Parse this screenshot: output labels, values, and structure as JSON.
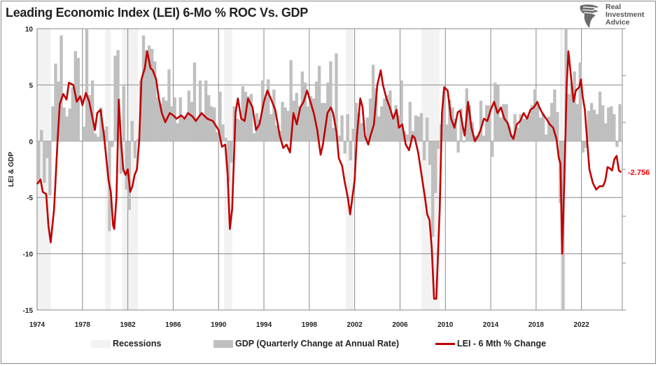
{
  "title": "Leading Economic Index (LEI) 6-Mo % ROC Vs. GDP",
  "logo": {
    "lines": [
      "Real",
      "Investment",
      "Advice"
    ],
    "icon": "eagle-head-icon"
  },
  "chart_data": {
    "type": "bar+line",
    "title": "Leading Economic Index (LEI) 6-Mo % ROC Vs. GDP",
    "ylabel": "LEI & GDP",
    "xlabel": "",
    "ylim": [
      -15,
      10
    ],
    "yticks": [
      10,
      5,
      0,
      -5,
      -10,
      -15
    ],
    "xlim": [
      1974,
      2025.6
    ],
    "xticks": [
      1974,
      1978,
      1982,
      1986,
      1990,
      1994,
      1998,
      2002,
      2006,
      2010,
      2014,
      2018,
      2022
    ],
    "grid": true,
    "legend_position": "bottom",
    "colors": {
      "recession": "#f2f2f2",
      "gdp": "#bfbfbf",
      "lei": "#c00000",
      "last_label": "#ff0000"
    },
    "last_value_label": "-2.756",
    "legend": [
      "Recessions",
      "GDP (Quarterly Change at Annual Rate)",
      "LEI - 6 Mth % Change"
    ],
    "recessions": [
      [
        1973.9,
        1975.2
      ],
      [
        1980.0,
        1980.5
      ],
      [
        1981.5,
        1982.9
      ],
      [
        1990.5,
        1991.2
      ],
      [
        2001.2,
        2001.9
      ],
      [
        2007.9,
        2009.5
      ],
      [
        2020.1,
        2020.4
      ]
    ],
    "gdp": {
      "name": "GDP (Quarterly Change at Annual Rate)",
      "start_year": 1974,
      "values": [
        -3.4,
        1.0,
        -3.7,
        -1.5,
        -4.8,
        3.1,
        6.9,
        5.3,
        9.4,
        3.0,
        2.2,
        2.9,
        4.8,
        8.0,
        7.4,
        0.0,
        1.3,
        16.4,
        4.1,
        5.4,
        0.7,
        0.4,
        3.0,
        1.0,
        1.3,
        -8.0,
        -0.5,
        7.6,
        8.1,
        -2.9,
        4.9,
        -4.3,
        -6.1,
        1.8,
        -1.5,
        0.2,
        5.4,
        9.4,
        8.1,
        8.5,
        8.2,
        7.1,
        3.9,
        3.3,
        3.9,
        3.6,
        6.4,
        3.1,
        3.9,
        1.6,
        3.9,
        2.0,
        2.2,
        4.5,
        3.5,
        7.0,
        2.1,
        5.4,
        2.4,
        5.4,
        4.1,
        3.1,
        3.0,
        0.8,
        4.4,
        1.5,
        0.3,
        -3.6,
        -1.9,
        3.1,
        2.0,
        1.9,
        4.9,
        4.4,
        4.0,
        4.2,
        0.7,
        2.5,
        1.9,
        5.4,
        3.9,
        5.5,
        2.4,
        4.6,
        1.4,
        0.9,
        3.5,
        3.0,
        2.7,
        7.2,
        3.6,
        4.3,
        3.1,
        6.2,
        5.2,
        3.1,
        4.0,
        3.8,
        5.3,
        6.7,
        3.4,
        3.4,
        5.2,
        7.1,
        1.2,
        7.8,
        0.5,
        2.3,
        -1.1,
        2.4,
        -1.7,
        1.1,
        3.4,
        2.5,
        1.6,
        0.5,
        2.1,
        3.8,
        6.8,
        4.7,
        2.2,
        3.1,
        3.8,
        4.1,
        4.5,
        2.0,
        3.2,
        2.3,
        5.4,
        0.9,
        0.6,
        3.5,
        0.9,
        2.3,
        2.2,
        2.5,
        -1.7,
        2.1,
        -2.1,
        -8.5,
        -4.6,
        -0.7,
        1.5,
        4.5,
        1.5,
        3.7,
        3.0,
        2.0,
        -1.0,
        2.9,
        -0.1,
        4.7,
        3.2,
        1.7,
        0.5,
        0.5,
        3.6,
        0.5,
        3.2,
        3.2,
        -1.4,
        5.2,
        5.0,
        2.1,
        3.3,
        3.3,
        1.3,
        0.6,
        2.4,
        1.2,
        2.4,
        2.0,
        2.0,
        2.3,
        3.2,
        4.6,
        3.3,
        2.1,
        2.5,
        0.6,
        2.2,
        3.4,
        4.6,
        2.6,
        -5.5,
        -28.0,
        35.0,
        4.2,
        5.2,
        6.2,
        3.3,
        7.0,
        -1.0,
        -0.6,
        2.7,
        3.4,
        2.8,
        2.4,
        4.4,
        3.2,
        1.6,
        3.0,
        3.1,
        2.4,
        -0.5,
        3.3
      ]
    },
    "lei": {
      "name": "LEI - 6 Mth % Change",
      "points": [
        [
          1974.0,
          -3.8
        ],
        [
          1974.3,
          -3.4
        ],
        [
          1974.5,
          -4.5
        ],
        [
          1974.8,
          -4.7
        ],
        [
          1975.0,
          -7.5
        ],
        [
          1975.2,
          -9.0
        ],
        [
          1975.5,
          -6.0
        ],
        [
          1975.8,
          0.0
        ],
        [
          1976.0,
          3.3
        ],
        [
          1976.3,
          4.2
        ],
        [
          1976.6,
          3.7
        ],
        [
          1976.8,
          5.2
        ],
        [
          1977.2,
          5.0
        ],
        [
          1977.5,
          3.5
        ],
        [
          1977.8,
          4.0
        ],
        [
          1978.0,
          3.2
        ],
        [
          1978.3,
          4.3
        ],
        [
          1978.6,
          3.5
        ],
        [
          1978.9,
          2.0
        ],
        [
          1979.1,
          1.0
        ],
        [
          1979.3,
          2.5
        ],
        [
          1979.6,
          2.8
        ],
        [
          1979.9,
          0.5
        ],
        [
          1980.1,
          -1.5
        ],
        [
          1980.3,
          -3.5
        ],
        [
          1980.5,
          -4.5
        ],
        [
          1980.7,
          -7.5
        ],
        [
          1980.8,
          -7.8
        ],
        [
          1981.0,
          -5.0
        ],
        [
          1981.2,
          3.7
        ],
        [
          1981.4,
          0.0
        ],
        [
          1981.6,
          -2.5
        ],
        [
          1981.8,
          -3.0
        ],
        [
          1982.0,
          -2.5
        ],
        [
          1982.2,
          -4.5
        ],
        [
          1982.4,
          -4.0
        ],
        [
          1982.6,
          -3.0
        ],
        [
          1982.8,
          -2.5
        ],
        [
          1983.0,
          0.0
        ],
        [
          1983.2,
          5.5
        ],
        [
          1983.5,
          6.5
        ],
        [
          1983.7,
          8.0
        ],
        [
          1984.0,
          6.5
        ],
        [
          1984.2,
          6.3
        ],
        [
          1984.5,
          5.5
        ],
        [
          1984.7,
          4.0
        ],
        [
          1985.0,
          2.5
        ],
        [
          1985.3,
          1.7
        ],
        [
          1985.7,
          2.5
        ],
        [
          1986.0,
          2.3
        ],
        [
          1986.3,
          2.0
        ],
        [
          1986.7,
          2.3
        ],
        [
          1987.0,
          2.0
        ],
        [
          1987.3,
          2.5
        ],
        [
          1987.7,
          2.2
        ],
        [
          1988.0,
          1.8
        ],
        [
          1988.5,
          2.5
        ],
        [
          1989.0,
          2.0
        ],
        [
          1989.5,
          1.8
        ],
        [
          1990.0,
          1.0
        ],
        [
          1990.3,
          -0.5
        ],
        [
          1990.6,
          -0.3
        ],
        [
          1990.8,
          -3.0
        ],
        [
          1991.0,
          -7.8
        ],
        [
          1991.2,
          -6.0
        ],
        [
          1991.5,
          2.5
        ],
        [
          1991.7,
          3.8
        ],
        [
          1992.0,
          2.0
        ],
        [
          1992.3,
          1.8
        ],
        [
          1992.6,
          3.8
        ],
        [
          1993.0,
          3.0
        ],
        [
          1993.3,
          1.0
        ],
        [
          1993.6,
          1.5
        ],
        [
          1994.0,
          3.5
        ],
        [
          1994.3,
          4.5
        ],
        [
          1994.6,
          3.8
        ],
        [
          1995.0,
          2.8
        ],
        [
          1995.4,
          0.5
        ],
        [
          1995.7,
          -0.6
        ],
        [
          1996.0,
          -0.3
        ],
        [
          1996.3,
          -1.0
        ],
        [
          1996.6,
          2.5
        ],
        [
          1996.9,
          1.5
        ],
        [
          1997.2,
          3.0
        ],
        [
          1997.5,
          3.5
        ],
        [
          1997.8,
          4.5
        ],
        [
          1998.1,
          3.5
        ],
        [
          1998.4,
          2.5
        ],
        [
          1998.7,
          1.0
        ],
        [
          1999.0,
          -1.2
        ],
        [
          1999.2,
          -0.3
        ],
        [
          1999.6,
          2.5
        ],
        [
          1999.9,
          3.0
        ],
        [
          2000.1,
          2.5
        ],
        [
          2000.4,
          0.8
        ],
        [
          2000.6,
          -1.5
        ],
        [
          2000.9,
          -2.2
        ],
        [
          2001.1,
          -3.5
        ],
        [
          2001.4,
          -5.0
        ],
        [
          2001.6,
          -6.5
        ],
        [
          2001.8,
          -5.0
        ],
        [
          2002.0,
          -3.5
        ],
        [
          2002.2,
          0.5
        ],
        [
          2002.5,
          3.8
        ],
        [
          2002.7,
          3.0
        ],
        [
          2002.9,
          0.5
        ],
        [
          2003.2,
          -0.3
        ],
        [
          2003.4,
          0.5
        ],
        [
          2003.7,
          1.5
        ],
        [
          2004.0,
          5.0
        ],
        [
          2004.3,
          6.3
        ],
        [
          2004.5,
          5.0
        ],
        [
          2004.8,
          3.8
        ],
        [
          2005.1,
          3.0
        ],
        [
          2005.4,
          2.0
        ],
        [
          2005.7,
          2.8
        ],
        [
          2005.9,
          1.2
        ],
        [
          2006.2,
          1.5
        ],
        [
          2006.5,
          -0.3
        ],
        [
          2006.8,
          -0.8
        ],
        [
          2007.1,
          0.5
        ],
        [
          2007.3,
          0.3
        ],
        [
          2007.6,
          -1.0
        ],
        [
          2007.9,
          -3.0
        ],
        [
          2008.2,
          -5.0
        ],
        [
          2008.4,
          -6.5
        ],
        [
          2008.6,
          -7.0
        ],
        [
          2008.8,
          -9.5
        ],
        [
          2009.0,
          -14.0
        ],
        [
          2009.2,
          -14.0
        ],
        [
          2009.5,
          -6.0
        ],
        [
          2009.7,
          2.5
        ],
        [
          2009.9,
          4.8
        ],
        [
          2010.2,
          4.5
        ],
        [
          2010.5,
          2.0
        ],
        [
          2010.8,
          1.2
        ],
        [
          2011.1,
          2.6
        ],
        [
          2011.3,
          2.7
        ],
        [
          2011.5,
          1.5
        ],
        [
          2011.7,
          0.5
        ],
        [
          2012.0,
          3.5
        ],
        [
          2012.3,
          1.2
        ],
        [
          2012.6,
          0.0
        ],
        [
          2012.9,
          0.5
        ],
        [
          2013.1,
          1.0
        ],
        [
          2013.4,
          2.0
        ],
        [
          2013.7,
          1.8
        ],
        [
          2014.0,
          2.8
        ],
        [
          2014.3,
          3.5
        ],
        [
          2014.6,
          2.5
        ],
        [
          2014.9,
          3.0
        ],
        [
          2015.2,
          2.0
        ],
        [
          2015.5,
          1.6
        ],
        [
          2015.8,
          0.5
        ],
        [
          2016.0,
          0.2
        ],
        [
          2016.3,
          1.5
        ],
        [
          2016.6,
          1.8
        ],
        [
          2016.9,
          2.5
        ],
        [
          2017.2,
          2.0
        ],
        [
          2017.5,
          2.8
        ],
        [
          2017.8,
          3.0
        ],
        [
          2018.1,
          3.5
        ],
        [
          2018.3,
          3.0
        ],
        [
          2018.6,
          2.4
        ],
        [
          2018.9,
          2.0
        ],
        [
          2019.2,
          1.5
        ],
        [
          2019.5,
          1.2
        ],
        [
          2019.8,
          0.2
        ],
        [
          2020.0,
          -1.5
        ],
        [
          2020.15,
          -2.0
        ],
        [
          2020.3,
          -10.0
        ],
        [
          2020.5,
          -3.0
        ],
        [
          2020.7,
          5.0
        ],
        [
          2020.85,
          8.0
        ],
        [
          2021.1,
          5.5
        ],
        [
          2021.3,
          3.5
        ],
        [
          2021.5,
          4.5
        ],
        [
          2021.8,
          4.8
        ],
        [
          2021.95,
          5.5
        ],
        [
          2022.1,
          4.0
        ],
        [
          2022.3,
          2.8
        ],
        [
          2022.5,
          0.0
        ],
        [
          2022.7,
          -2.5
        ],
        [
          2023.0,
          -3.7
        ],
        [
          2023.3,
          -4.3
        ],
        [
          2023.6,
          -4.0
        ],
        [
          2023.9,
          -4.0
        ],
        [
          2024.1,
          -3.5
        ],
        [
          2024.3,
          -2.3
        ],
        [
          2024.5,
          -2.4
        ],
        [
          2024.7,
          -2.6
        ],
        [
          2024.9,
          -1.6
        ],
        [
          2025.1,
          -1.3
        ],
        [
          2025.3,
          -2.6
        ],
        [
          2025.5,
          -2.756
        ]
      ]
    }
  }
}
